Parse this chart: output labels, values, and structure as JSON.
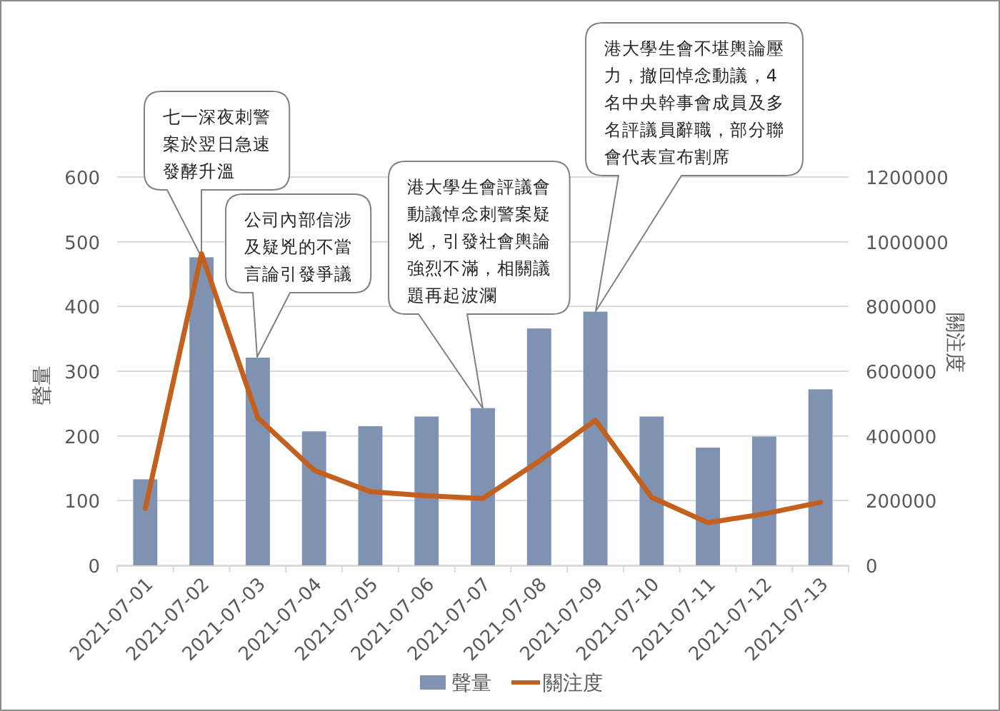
{
  "chart_data": {
    "type": "bar",
    "categories": [
      "2021-07-01",
      "2021-07-02",
      "2021-07-03",
      "2021-07-04",
      "2021-07-05",
      "2021-07-06",
      "2021-07-07",
      "2021-07-08",
      "2021-07-09",
      "2021-07-10",
      "2021-07-11",
      "2021-07-12",
      "2021-07-13"
    ],
    "series": [
      {
        "name": "聲量",
        "color": "#7f92b2",
        "values": [
          133,
          476,
          321,
          207,
          215,
          230,
          243,
          366,
          392,
          230,
          182,
          199,
          272
        ]
      },
      {
        "name": "關注度",
        "type": "line",
        "axis": "y2",
        "color": "#c4601e",
        "values": [
          176000,
          963000,
          456000,
          294000,
          228000,
          215000,
          207000,
          322000,
          449000,
          210000,
          132000,
          159000,
          195000
        ]
      }
    ],
    "ylabel": "聲量",
    "y2label": "關注度",
    "ylim": [
      0,
      600
    ],
    "yticks": [
      0,
      100,
      200,
      300,
      400,
      500,
      600
    ],
    "y2lim": [
      0,
      1200000
    ],
    "y2ticks": [
      0,
      200000,
      400000,
      600000,
      800000,
      1000000,
      1200000
    ],
    "grid": "y",
    "legend": "bottom",
    "annotations": [
      "七一深夜刺警案於翌日急速發酵升溫",
      "公司內部信涉及疑兇的不當言論引發爭議",
      "港大學生會評議會動議悼念刺警案疑兇，引發社會輿論強烈不滿，相關議題再起波瀾",
      "港大學生會不堪輿論壓力，撤回悼念動議，4名中央幹事會成員及多名評議員辭職，部分聯會代表宣布割席"
    ]
  }
}
